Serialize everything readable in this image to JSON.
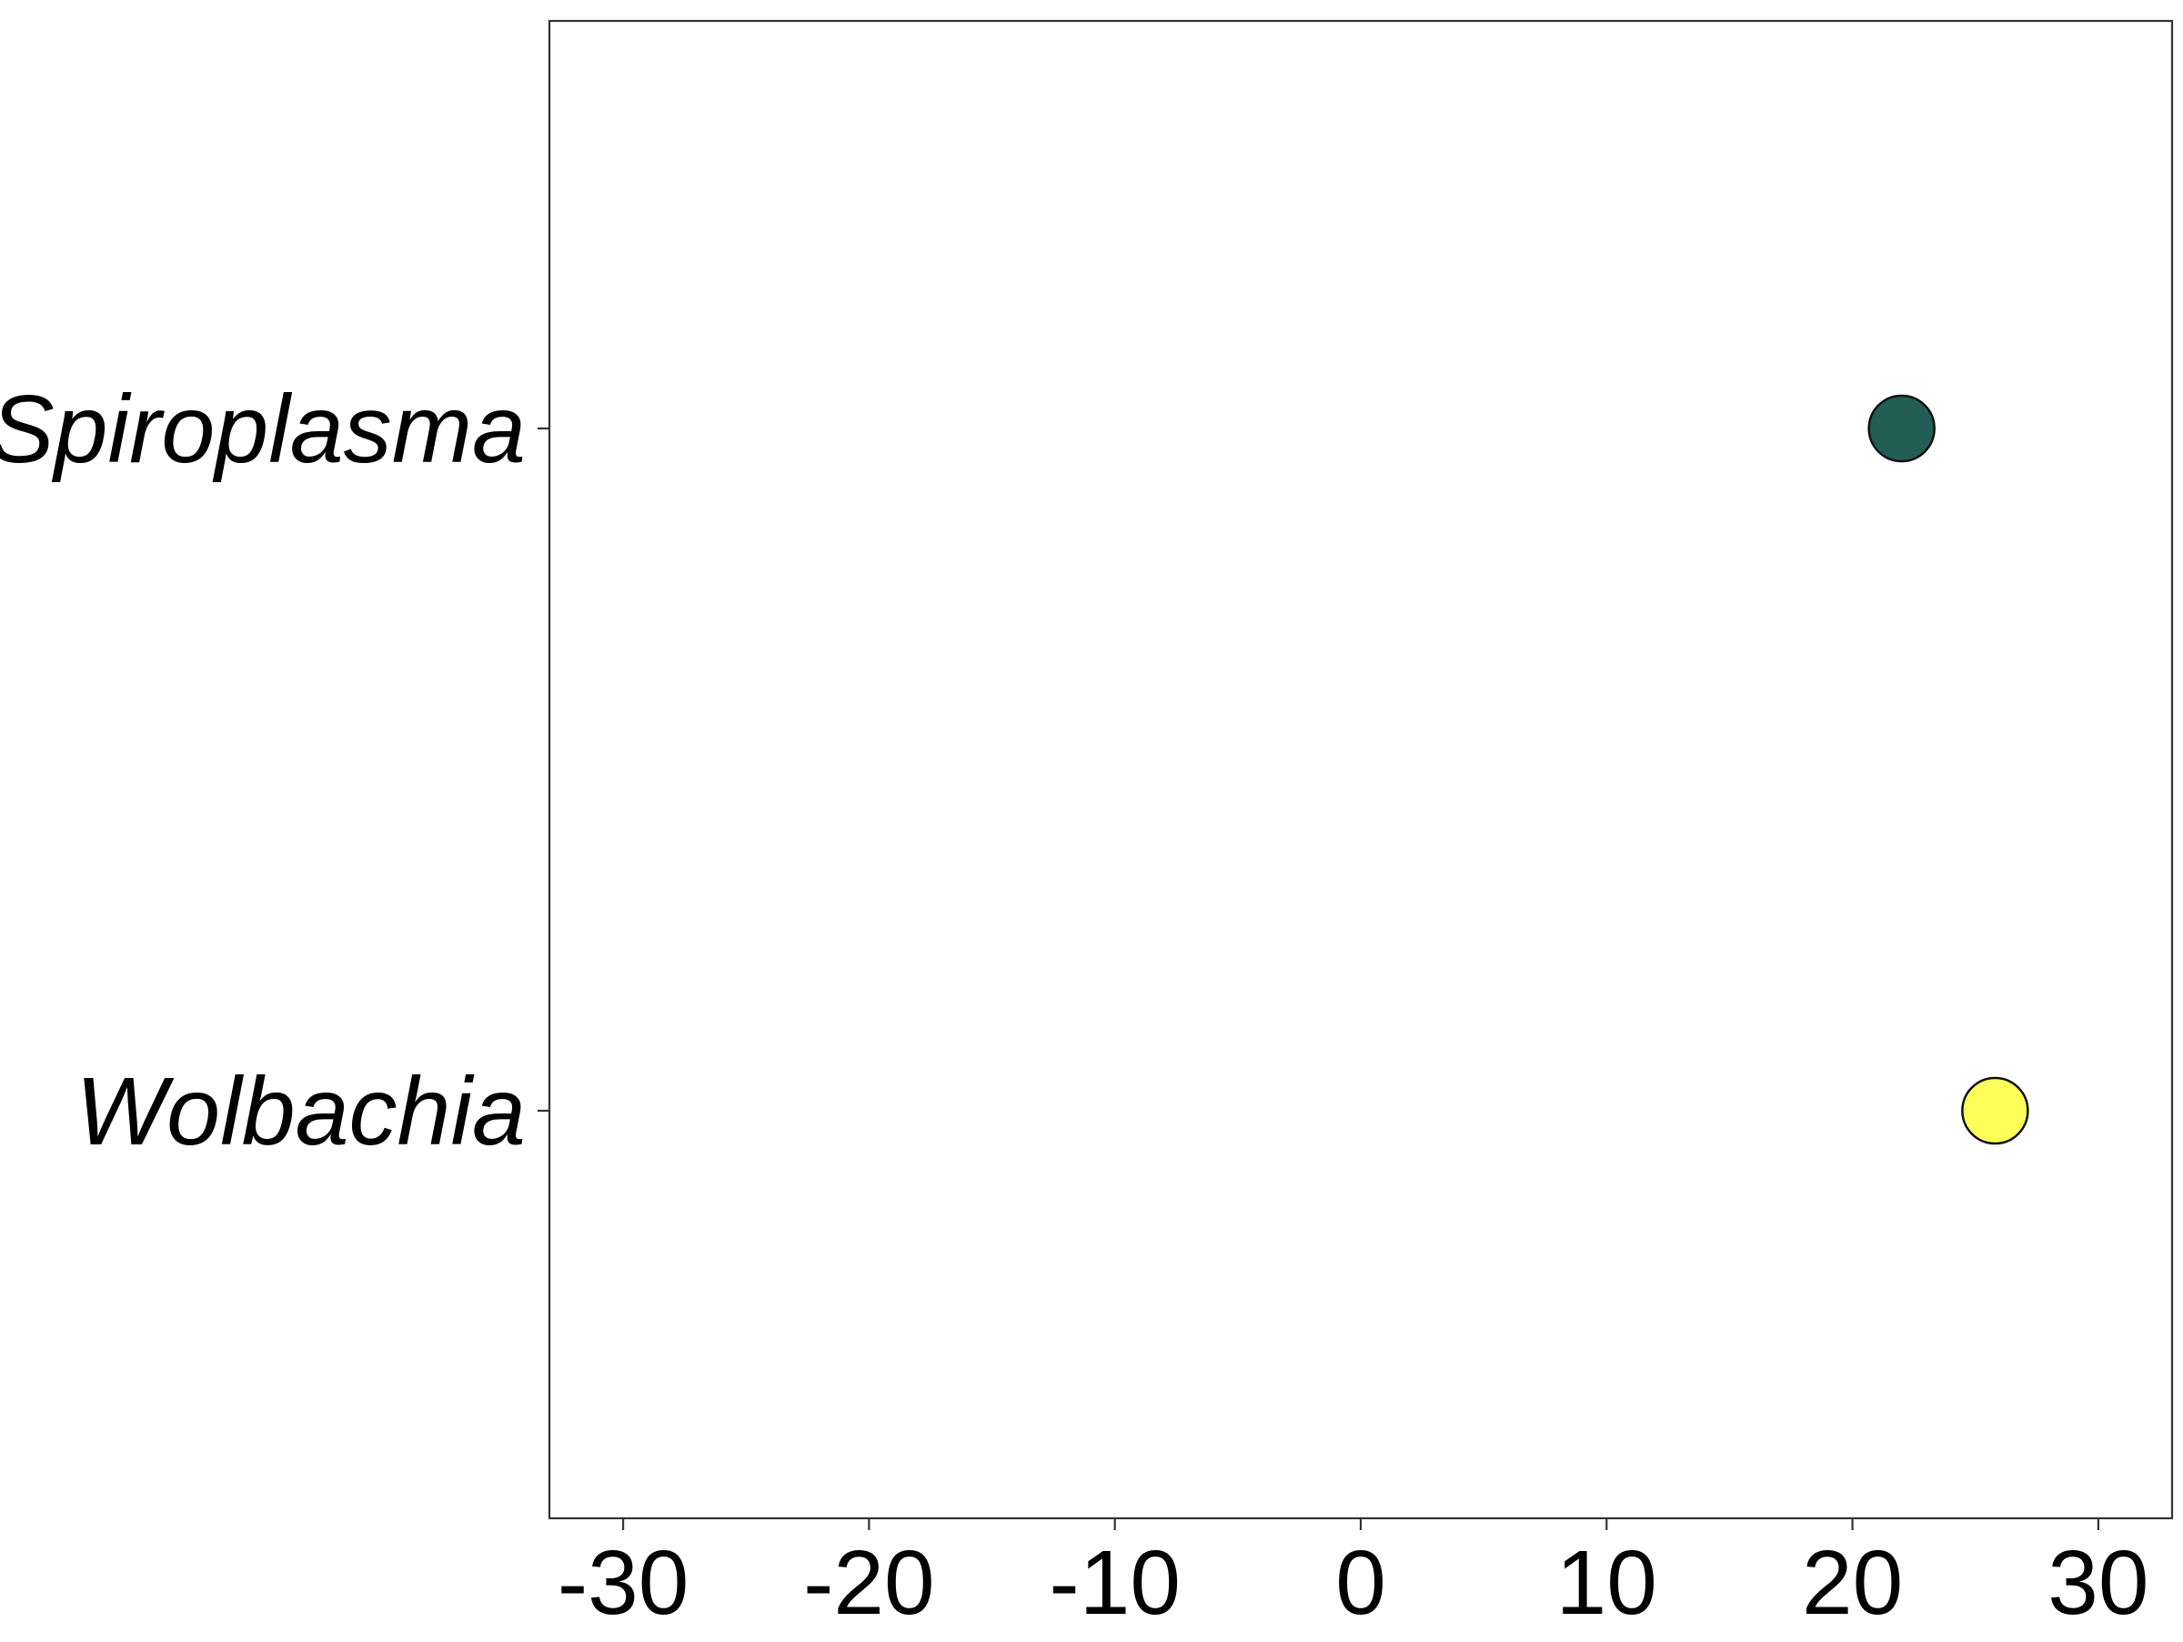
{
  "chart_data": {
    "type": "scatter",
    "title": "",
    "xlabel": "",
    "ylabel": "",
    "xlim": [
      -33,
      33
    ],
    "x_ticks": [
      -30,
      -20,
      -10,
      0,
      10,
      20,
      30
    ],
    "x_tick_labels": [
      "-30",
      "-20",
      "-10",
      "0",
      "10",
      "20",
      "30"
    ],
    "categories": [
      "Spiroplasma",
      "Wolbachia"
    ],
    "grid": false,
    "legend": "none",
    "points": [
      {
        "category": "Spiroplasma",
        "x": 22.0,
        "color": "#225e55"
      },
      {
        "category": "Wolbachia",
        "x": 25.8,
        "color": "#ffff5c"
      }
    ]
  }
}
